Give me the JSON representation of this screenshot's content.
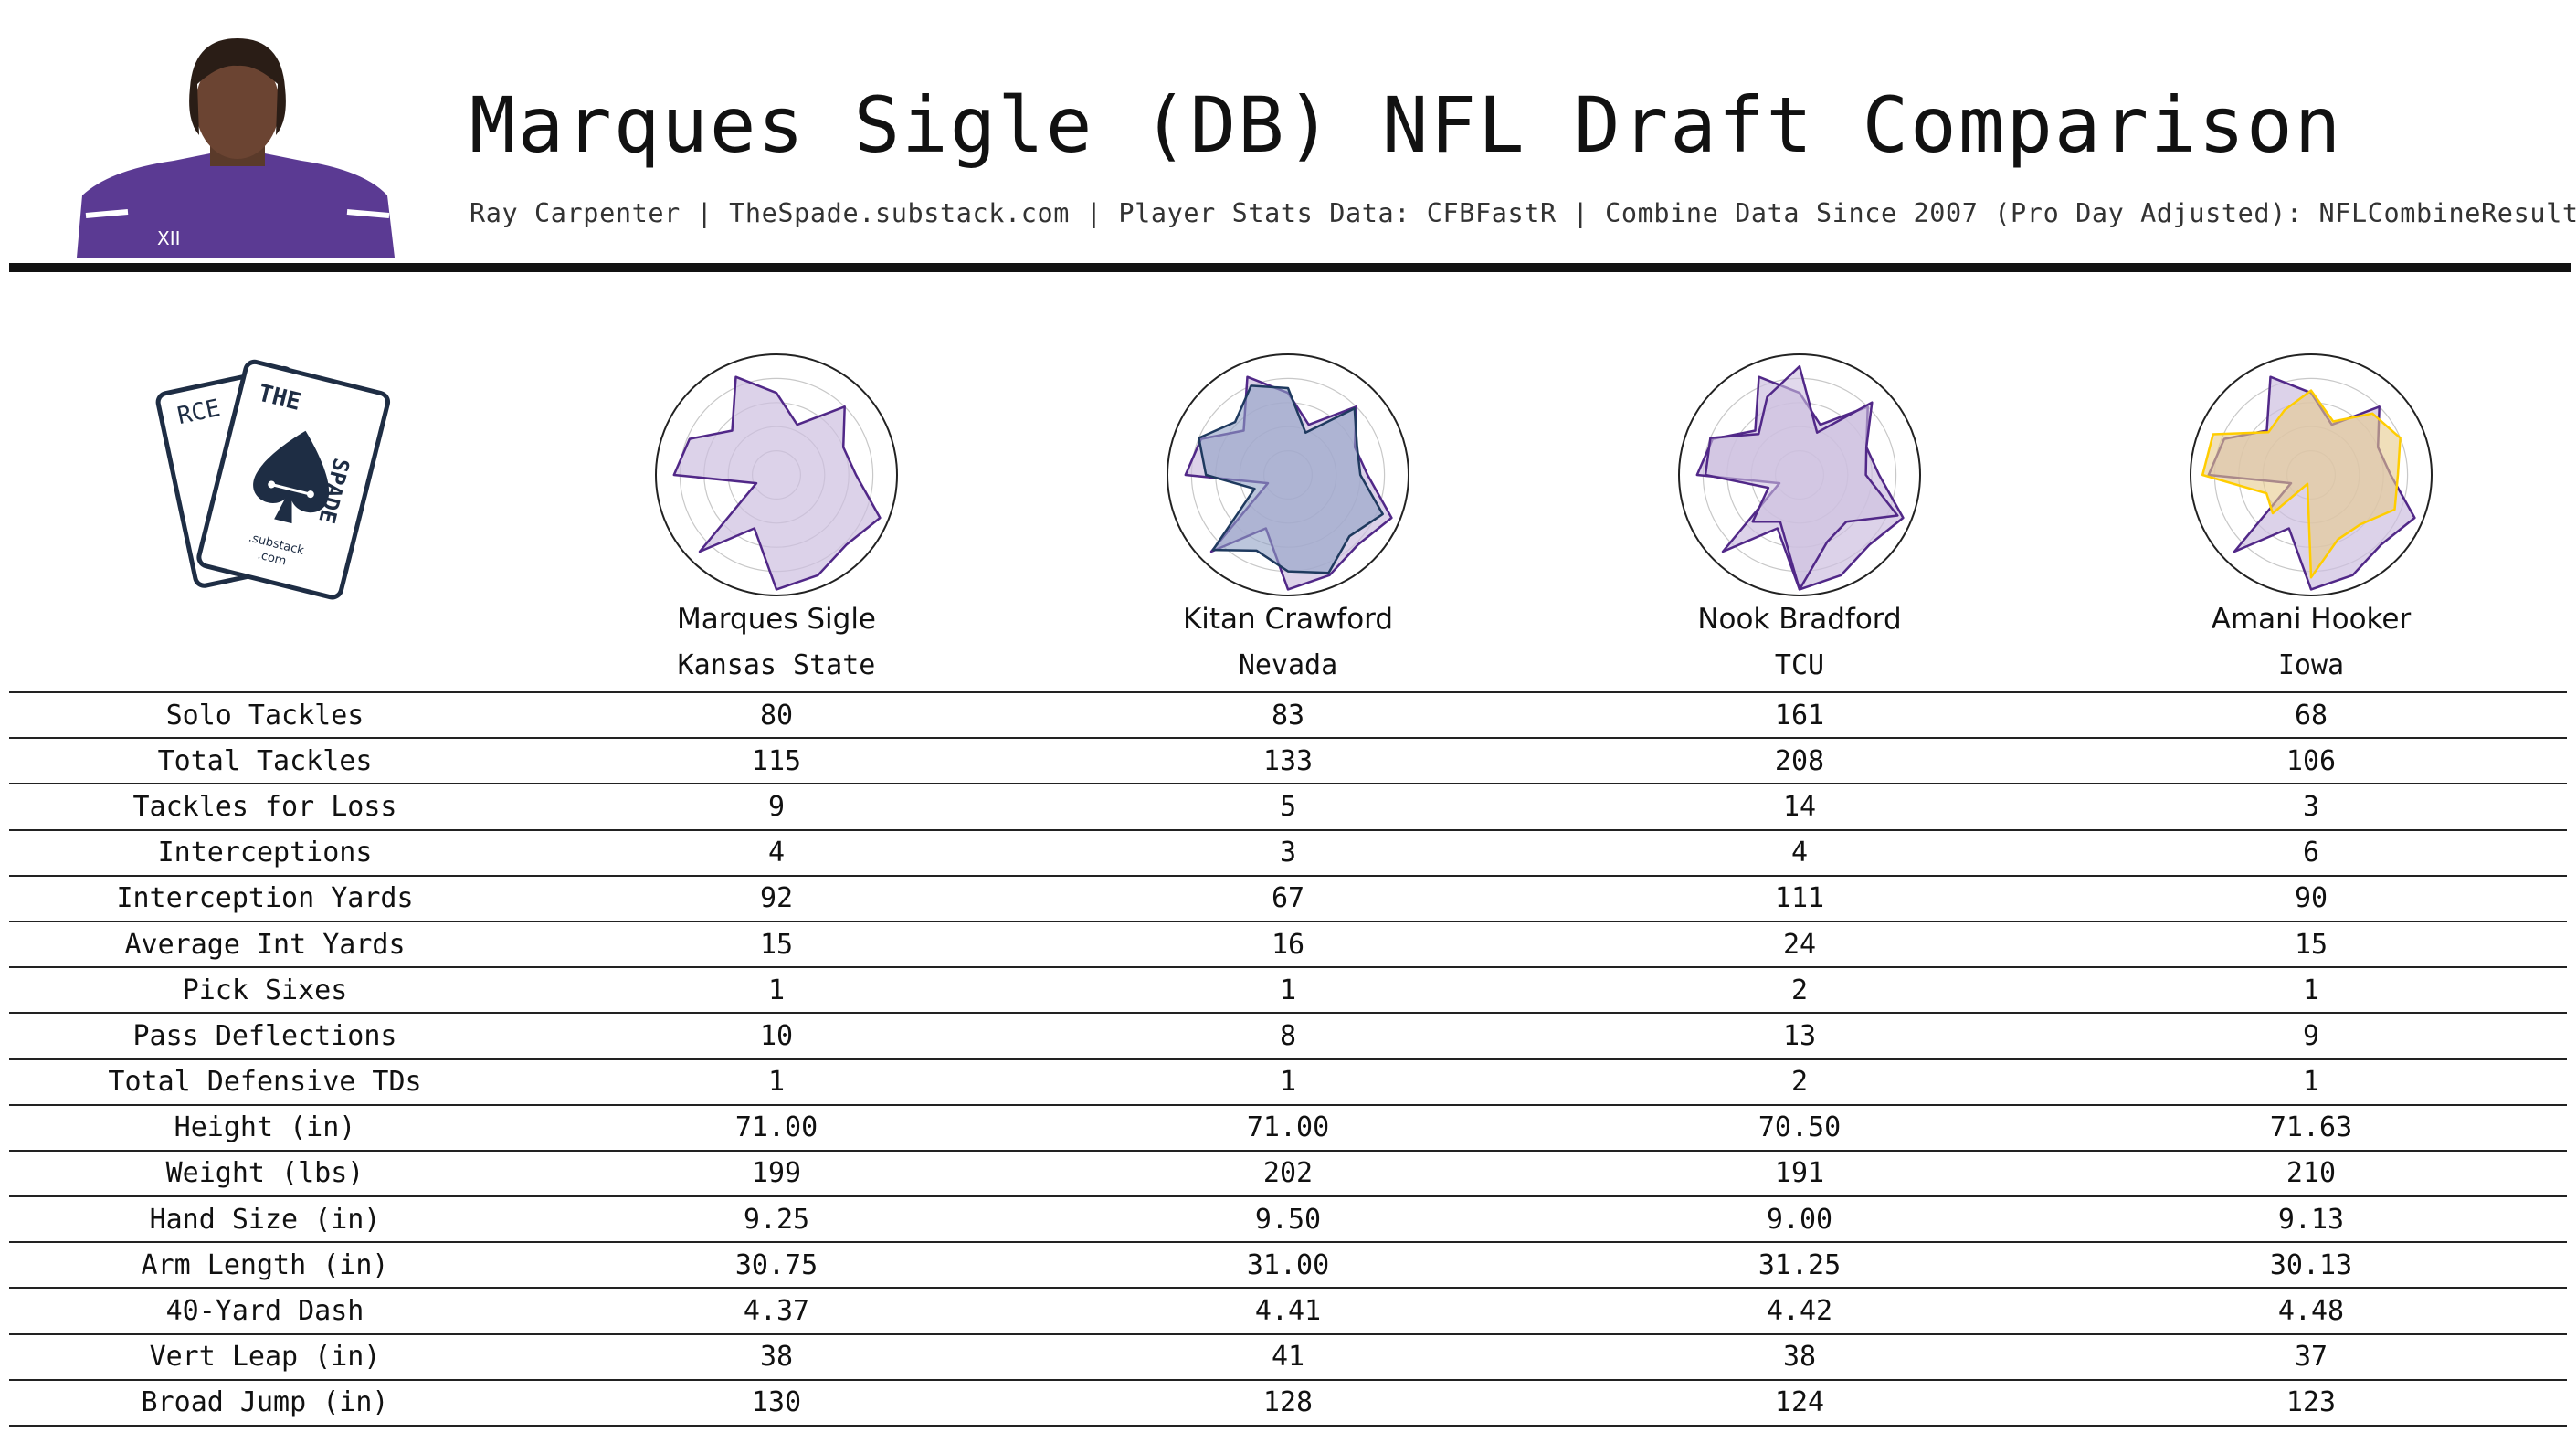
{
  "header": {
    "title": "Marques Sigle (DB) NFL Draft Comparison",
    "subtitle": "Ray Carpenter | TheSpade.substack.com | Player Stats Data: CFBFastR | Combine Data Since 2007 (Pro Day Adjusted): NFLCombineResults.com"
  },
  "logo": {
    "line1": "RCE",
    "line2": "THE",
    "line3": "SPADE",
    "line4": ".substack",
    "line5": ".com"
  },
  "colors": {
    "purple": "#512888",
    "purple_fill": "#cdbfe0",
    "navy": "#1f3a5f",
    "navy_fill": "#8fa0c4",
    "gold": "#ffcd00",
    "gold_fill": "#e6c98c",
    "rule": "#111111"
  },
  "players": [
    {
      "name": "Marques Sigle",
      "school": "Kansas State"
    },
    {
      "name": "Kitan Crawford",
      "school": "Nevada"
    },
    {
      "name": "Nook Bradford",
      "school": "TCU"
    },
    {
      "name": "Amani Hooker",
      "school": "Iowa"
    }
  ],
  "table": {
    "rows": [
      {
        "label": "Solo Tackles",
        "values": [
          "80",
          "83",
          "161",
          "68"
        ]
      },
      {
        "label": "Total Tackles",
        "values": [
          "115",
          "133",
          "208",
          "106"
        ]
      },
      {
        "label": "Tackles for Loss",
        "values": [
          "9",
          "5",
          "14",
          "3"
        ]
      },
      {
        "label": "Interceptions",
        "values": [
          "4",
          "3",
          "4",
          "6"
        ]
      },
      {
        "label": "Interception Yards",
        "values": [
          "92",
          "67",
          "111",
          "90"
        ]
      },
      {
        "label": "Average Int Yards",
        "values": [
          "15",
          "16",
          "24",
          "15"
        ]
      },
      {
        "label": "Pick Sixes",
        "values": [
          "1",
          "1",
          "2",
          "1"
        ]
      },
      {
        "label": "Pass Deflections",
        "values": [
          "10",
          "8",
          "13",
          "9"
        ]
      },
      {
        "label": "Total Defensive TDs",
        "values": [
          "1",
          "1",
          "2",
          "1"
        ]
      },
      {
        "label": "Height (in)",
        "values": [
          "71.00",
          "71.00",
          "70.50",
          "71.63"
        ]
      },
      {
        "label": "Weight (lbs)",
        "values": [
          "199",
          "202",
          "191",
          "210"
        ]
      },
      {
        "label": "Hand Size (in)",
        "values": [
          "9.25",
          "9.50",
          "9.00",
          "9.13"
        ]
      },
      {
        "label": "Arm Length (in)",
        "values": [
          "30.75",
          "31.00",
          "31.25",
          "30.13"
        ]
      },
      {
        "label": "40-Yard Dash",
        "values": [
          "4.37",
          "4.41",
          "4.42",
          "4.48"
        ]
      },
      {
        "label": "Vert Leap (in)",
        "values": [
          "38",
          "41",
          "38",
          "37"
        ]
      },
      {
        "label": "Broad Jump (in)",
        "values": [
          "130",
          "128",
          "124",
          "123"
        ]
      }
    ]
  },
  "chart_data": {
    "type": "radar",
    "radar_range": [
      0,
      1
    ],
    "rings": 4,
    "grid": true,
    "metric_order": [
      "Solo Tackles",
      "Total Tackles",
      "Tackles for Loss",
      "Interceptions",
      "Interception Yards",
      "Average Int Yards",
      "Pick Sixes",
      "Pass Deflections",
      "Total Defensive TDs",
      "Height (in)",
      "Weight (lbs)",
      "Hand Size (in)",
      "Arm Length (in)",
      "40-Yard Dash",
      "Vert Leap (in)",
      "Broad Jump (in)"
    ],
    "reference_series_values": [
      0.68,
      0.45,
      0.8,
      0.6,
      0.66,
      0.93,
      0.82,
      0.9,
      0.95,
      0.48,
      0.9,
      0.18,
      0.85,
      0.78,
      0.52,
      0.88
    ],
    "charts": [
      {
        "player": "Marques Sigle",
        "overlay_values": null,
        "overlay_color": "purple"
      },
      {
        "player": "Kitan Crawford",
        "overlay_values": [
          0.72,
          0.38,
          0.78,
          0.62,
          0.6,
          0.85,
          0.72,
          0.88,
          0.8,
          0.68,
          0.88,
          0.3,
          0.68,
          0.8,
          0.62,
          0.8
        ],
        "overlay_color": "navy"
      },
      {
        "player": "Nook Bradford",
        "overlay_values": [
          0.9,
          0.38,
          0.85,
          0.6,
          0.55,
          0.88,
          0.55,
          0.6,
          0.95,
          0.42,
          0.55,
          0.28,
          0.78,
          0.8,
          0.48,
          0.7
        ],
        "overlay_color": "purple"
      },
      {
        "player": "Amani Hooker",
        "overlay_values": [
          0.7,
          0.48,
          0.72,
          0.8,
          0.72,
          0.75,
          0.58,
          0.58,
          0.85,
          0.08,
          0.45,
          0.4,
          0.9,
          0.88,
          0.5,
          0.58
        ],
        "overlay_color": "gold"
      }
    ]
  }
}
